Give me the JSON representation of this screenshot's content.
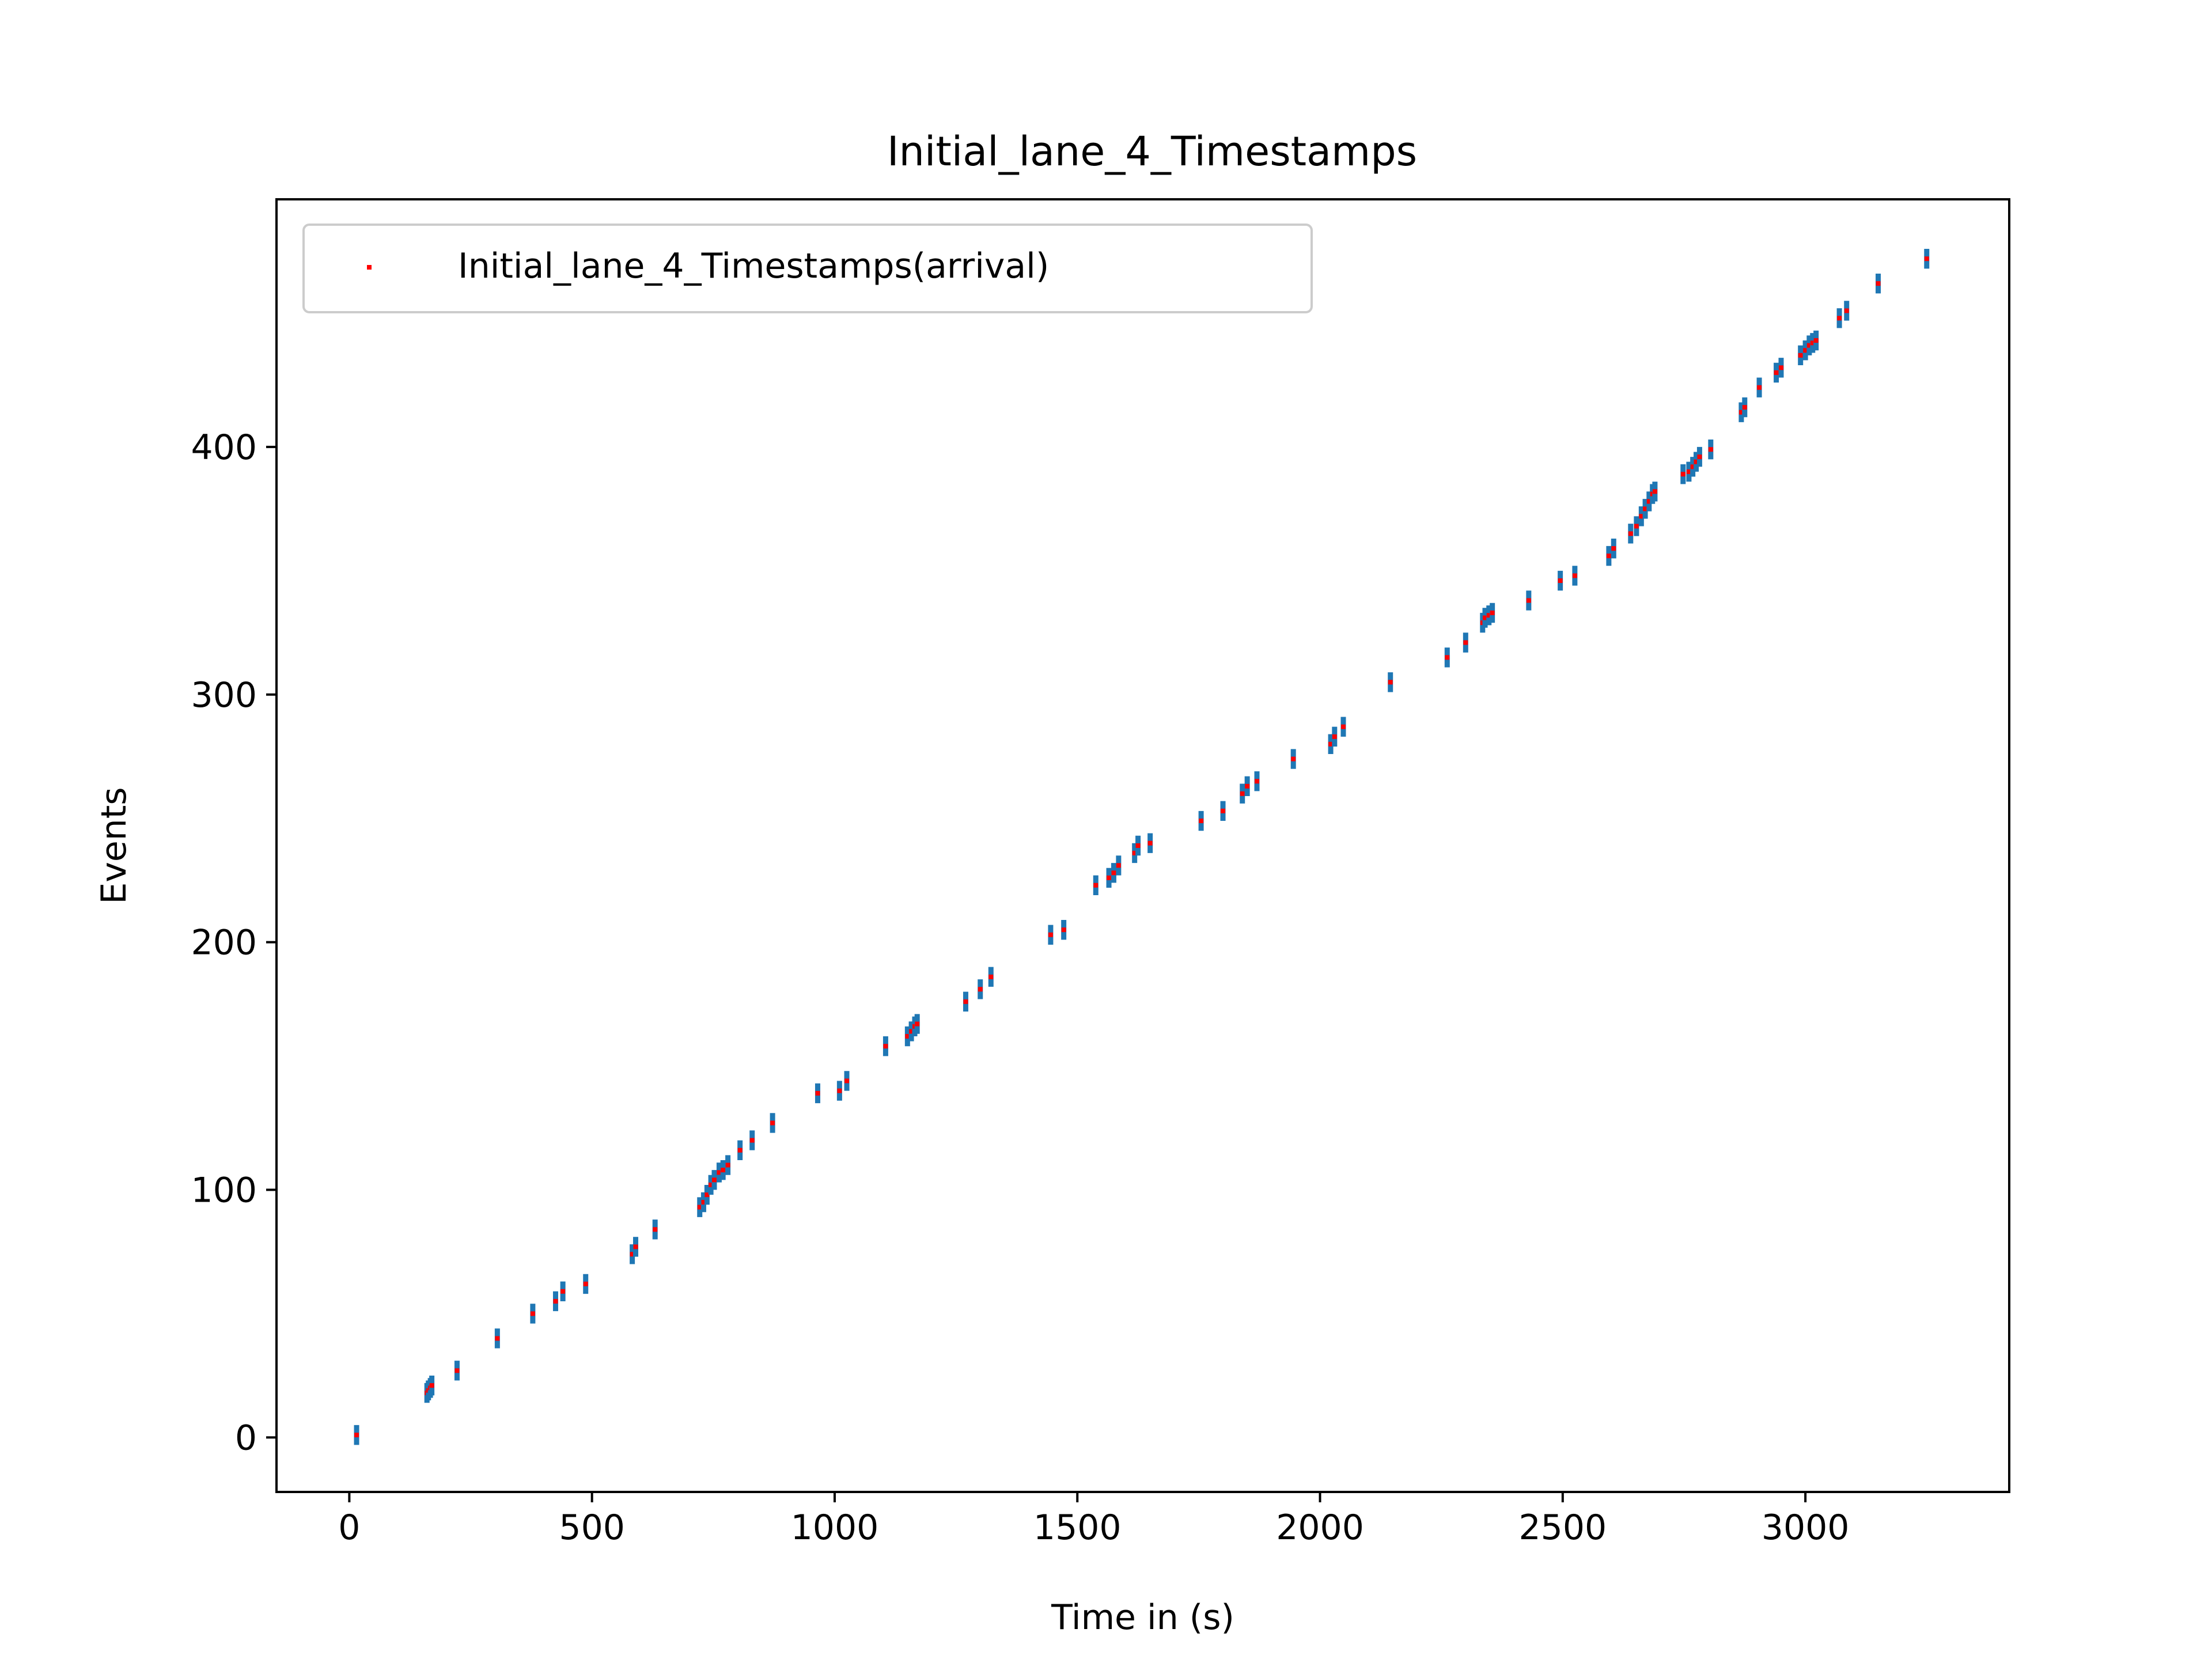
{
  "chart_data": {
    "type": "scatter",
    "title": "Initial_lane_4_Timestamps",
    "xlabel": "Time in (s)",
    "ylabel": "Events",
    "xlim": [
      -150,
      3420
    ],
    "ylim": [
      -22,
      500
    ],
    "xticks": [
      0,
      500,
      1000,
      1500,
      2000,
      2500,
      3000
    ],
    "yticks": [
      0,
      100,
      200,
      300,
      400
    ],
    "grid": false,
    "legend": {
      "position": "top-left",
      "entries": [
        "Initial_lane_4_Timestamps(arrival)"
      ]
    },
    "marker_color": "#ff0000",
    "errorbar_color": "#1f77b4",
    "series": [
      {
        "name": "Initial_lane_4_Timestamps(arrival)",
        "points": [
          [
            15,
            1
          ],
          [
            160,
            18
          ],
          [
            163,
            19
          ],
          [
            167,
            20
          ],
          [
            170,
            21
          ],
          [
            222,
            27
          ],
          [
            305,
            40
          ],
          [
            378,
            50
          ],
          [
            425,
            55
          ],
          [
            440,
            59
          ],
          [
            487,
            62
          ],
          [
            583,
            74
          ],
          [
            590,
            77
          ],
          [
            630,
            84
          ],
          [
            722,
            93
          ],
          [
            730,
            95
          ],
          [
            737,
            98
          ],
          [
            745,
            102
          ],
          [
            752,
            104
          ],
          [
            762,
            107
          ],
          [
            770,
            108
          ],
          [
            780,
            110
          ],
          [
            805,
            116
          ],
          [
            830,
            120
          ],
          [
            872,
            127
          ],
          [
            965,
            139
          ],
          [
            1010,
            140
          ],
          [
            1025,
            144
          ],
          [
            1105,
            158
          ],
          [
            1150,
            162
          ],
          [
            1158,
            164
          ],
          [
            1165,
            166
          ],
          [
            1170,
            167
          ],
          [
            1270,
            176
          ],
          [
            1300,
            181
          ],
          [
            1322,
            186
          ],
          [
            1445,
            203
          ],
          [
            1472,
            205
          ],
          [
            1538,
            223
          ],
          [
            1565,
            226
          ],
          [
            1575,
            228
          ],
          [
            1585,
            231
          ],
          [
            1618,
            236
          ],
          [
            1625,
            239
          ],
          [
            1650,
            240
          ],
          [
            1755,
            249
          ],
          [
            1800,
            253
          ],
          [
            1840,
            260
          ],
          [
            1850,
            263
          ],
          [
            1870,
            265
          ],
          [
            1945,
            274
          ],
          [
            2022,
            280
          ],
          [
            2030,
            283
          ],
          [
            2048,
            287
          ],
          [
            2145,
            305
          ],
          [
            2262,
            315
          ],
          [
            2300,
            321
          ],
          [
            2335,
            329
          ],
          [
            2340,
            331
          ],
          [
            2348,
            332
          ],
          [
            2355,
            333
          ],
          [
            2430,
            338
          ],
          [
            2495,
            346
          ],
          [
            2525,
            348
          ],
          [
            2595,
            356
          ],
          [
            2605,
            359
          ],
          [
            2640,
            365
          ],
          [
            2652,
            368
          ],
          [
            2662,
            372
          ],
          [
            2670,
            375
          ],
          [
            2678,
            378
          ],
          [
            2685,
            381
          ],
          [
            2690,
            382
          ],
          [
            2748,
            389
          ],
          [
            2760,
            390
          ],
          [
            2768,
            392
          ],
          [
            2775,
            394
          ],
          [
            2782,
            396
          ],
          [
            2805,
            399
          ],
          [
            2868,
            414
          ],
          [
            2875,
            416
          ],
          [
            2905,
            424
          ],
          [
            2940,
            430
          ],
          [
            2950,
            432
          ],
          [
            2990,
            437
          ],
          [
            3000,
            439
          ],
          [
            3008,
            441
          ],
          [
            3015,
            442
          ],
          [
            3022,
            443
          ],
          [
            3070,
            452
          ],
          [
            3085,
            455
          ],
          [
            3150,
            466
          ],
          [
            3250,
            476
          ]
        ]
      }
    ]
  }
}
